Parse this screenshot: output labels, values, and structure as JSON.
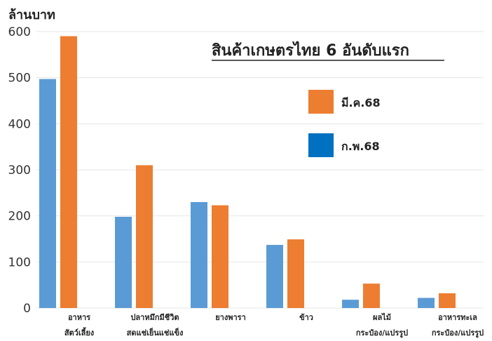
{
  "chart_data": {
    "type": "bar",
    "title": "สินค้าเกษตรไทย 6 อันดับแรก",
    "ylabel": "ล้านบาท",
    "ylim": [
      0,
      600
    ],
    "yticks": [
      0,
      100,
      200,
      300,
      400,
      500,
      600
    ],
    "grid": true,
    "legend_position": "right",
    "categories": [
      [
        "อาหาร",
        "สัตว์เลี้ยง"
      ],
      [
        "ปลาหมึกมีชีวิต",
        "สดแช่เย็นแช่แข็ง"
      ],
      [
        "ยางพารา"
      ],
      [
        "ข้าว"
      ],
      [
        "ผลไม้",
        "กระป๋อง/แปรรูป"
      ],
      [
        "อาหารทะเล",
        "กระป๋อง/แปรรูป"
      ]
    ],
    "series": [
      {
        "name": "ก.พ.68",
        "color": "#5b9bd5",
        "values": [
          497,
          198,
          230,
          137,
          18,
          22
        ]
      },
      {
        "name": "มี.ค.68",
        "color": "#ed7d31",
        "values": [
          590,
          310,
          223,
          149,
          53,
          32
        ]
      }
    ],
    "legend": [
      {
        "name": "มี.ค.68",
        "color": "#ed7d31"
      },
      {
        "name": "ก.พ.68",
        "color": "#0070c0"
      }
    ]
  }
}
